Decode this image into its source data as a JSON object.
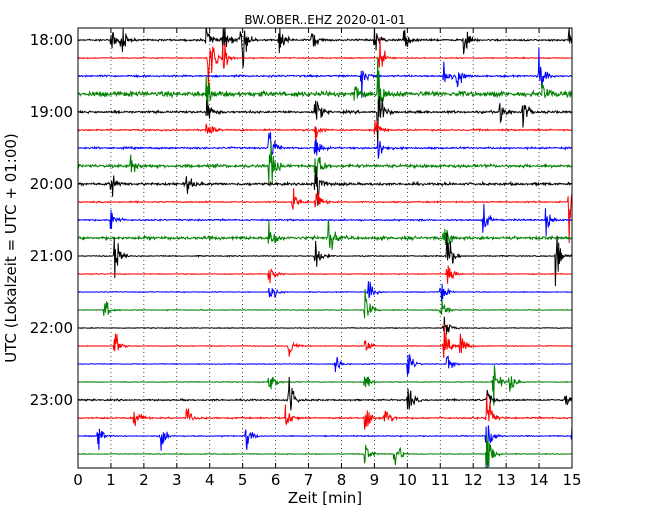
{
  "chart_data": {
    "type": "line",
    "title": "BW.OBER..EHZ 2020-01-01",
    "xlabel": "Zeit  [min]",
    "ylabel": "UTC (Lokalzeit = UTC + 01:00)",
    "xlim": [
      0,
      15
    ],
    "x_ticks": [
      "0",
      "1",
      "2",
      "3",
      "4",
      "5",
      "6",
      "7",
      "8",
      "9",
      "10",
      "11",
      "12",
      "13",
      "14",
      "15"
    ],
    "y_ticks": [
      "18:00",
      "19:00",
      "20:00",
      "21:00",
      "22:00",
      "23:00"
    ],
    "grid": "vertical dotted lines at every minute",
    "trace_colors": [
      "#000000",
      "#ff0000",
      "#0000ff",
      "#008000"
    ],
    "trace_start_times": [
      "18:00",
      "18:15",
      "18:30",
      "18:45",
      "19:00",
      "19:15",
      "19:30",
      "19:45",
      "20:00",
      "20:15",
      "20:30",
      "20:45",
      "21:00",
      "21:15",
      "21:30",
      "21:45",
      "22:00",
      "22:15",
      "22:30",
      "22:45",
      "23:00",
      "23:15",
      "23:30",
      "23:45"
    ],
    "trace_interval_minutes": 15,
    "noise_level": [
      0.35,
      0.2,
      0.35,
      1.0,
      0.45,
      0.3,
      0.35,
      0.6,
      0.5,
      0.25,
      0.3,
      0.6,
      0.2,
      0.15,
      0.15,
      0.15,
      0.15,
      0.15,
      0.15,
      0.15,
      0.3,
      0.3,
      0.2,
      0.15
    ],
    "events": [
      {
        "trace": "18:00",
        "minute": 1.0,
        "amp": 1.5
      },
      {
        "trace": "18:00",
        "minute": 1.3,
        "amp": 1.2
      },
      {
        "trace": "18:00",
        "minute": 3.9,
        "amp": 1.3
      },
      {
        "trace": "18:00",
        "minute": 4.4,
        "amp": 1.5
      },
      {
        "trace": "18:00",
        "minute": 4.9,
        "amp": 1.0
      },
      {
        "trace": "18:00",
        "minute": 5.0,
        "amp": 1.4
      },
      {
        "trace": "18:00",
        "minute": 6.1,
        "amp": 1.2
      },
      {
        "trace": "18:00",
        "minute": 7.1,
        "amp": 1.0
      },
      {
        "trace": "18:00",
        "minute": 9.0,
        "amp": 1.1
      },
      {
        "trace": "18:00",
        "minute": 9.9,
        "amp": 1.0
      },
      {
        "trace": "18:00",
        "minute": 11.7,
        "amp": 1.1
      },
      {
        "trace": "18:00",
        "minute": 14.9,
        "amp": 1.3
      },
      {
        "trace": "18:15",
        "minute": 3.95,
        "amp": 3.0
      },
      {
        "trace": "18:15",
        "minute": 4.4,
        "amp": 1.3
      },
      {
        "trace": "18:15",
        "minute": 9.15,
        "amp": 1.5
      },
      {
        "trace": "18:30",
        "minute": 8.6,
        "amp": 1.2
      },
      {
        "trace": "18:30",
        "minute": 11.1,
        "amp": 1.3
      },
      {
        "trace": "18:30",
        "minute": 11.5,
        "amp": 1.1
      },
      {
        "trace": "18:30",
        "minute": 14.0,
        "amp": 2.0
      },
      {
        "trace": "18:45",
        "minute": 3.9,
        "amp": 1.2
      },
      {
        "trace": "18:45",
        "minute": 8.4,
        "amp": 1.1
      },
      {
        "trace": "18:45",
        "minute": 9.1,
        "amp": 2.0
      },
      {
        "trace": "18:45",
        "minute": 14.1,
        "amp": 1.0
      },
      {
        "trace": "19:00",
        "minute": 3.9,
        "amp": 1.0
      },
      {
        "trace": "19:00",
        "minute": 7.2,
        "amp": 1.3
      },
      {
        "trace": "19:00",
        "minute": 9.1,
        "amp": 2.5
      },
      {
        "trace": "19:00",
        "minute": 12.8,
        "amp": 1.0
      },
      {
        "trace": "19:00",
        "minute": 13.5,
        "amp": 1.2
      },
      {
        "trace": "19:15",
        "minute": 3.9,
        "amp": 1.1
      },
      {
        "trace": "19:15",
        "minute": 7.2,
        "amp": 1.0
      },
      {
        "trace": "19:15",
        "minute": 9.0,
        "amp": 1.3
      },
      {
        "trace": "19:30",
        "minute": 5.8,
        "amp": 2.0
      },
      {
        "trace": "19:30",
        "minute": 7.2,
        "amp": 1.2
      },
      {
        "trace": "19:30",
        "minute": 9.1,
        "amp": 1.2
      },
      {
        "trace": "19:45",
        "minute": 1.6,
        "amp": 1.0
      },
      {
        "trace": "19:45",
        "minute": 5.8,
        "amp": 2.5
      },
      {
        "trace": "19:45",
        "minute": 7.2,
        "amp": 2.0
      },
      {
        "trace": "20:00",
        "minute": 1.0,
        "amp": 1.0
      },
      {
        "trace": "20:00",
        "minute": 3.3,
        "amp": 1.0
      },
      {
        "trace": "20:00",
        "minute": 7.2,
        "amp": 2.5
      },
      {
        "trace": "20:15",
        "minute": 6.5,
        "amp": 1.2
      },
      {
        "trace": "20:15",
        "minute": 7.2,
        "amp": 1.3
      },
      {
        "trace": "20:15",
        "minute": 14.9,
        "amp": 2.5
      },
      {
        "trace": "20:30",
        "minute": 1.0,
        "amp": 1.3
      },
      {
        "trace": "20:30",
        "minute": 12.3,
        "amp": 1.2
      },
      {
        "trace": "20:30",
        "minute": 14.2,
        "amp": 1.0
      },
      {
        "trace": "20:45",
        "minute": 5.8,
        "amp": 2.0
      },
      {
        "trace": "20:45",
        "minute": 7.6,
        "amp": 1.8
      },
      {
        "trace": "20:45",
        "minute": 11.1,
        "amp": 1.2
      },
      {
        "trace": "21:00",
        "minute": 1.1,
        "amp": 2.5
      },
      {
        "trace": "21:00",
        "minute": 7.2,
        "amp": 1.5
      },
      {
        "trace": "21:00",
        "minute": 11.2,
        "amp": 2.5
      },
      {
        "trace": "21:00",
        "minute": 14.5,
        "amp": 2.5
      },
      {
        "trace": "21:15",
        "minute": 5.8,
        "amp": 1.2
      },
      {
        "trace": "21:15",
        "minute": 11.2,
        "amp": 1.5
      },
      {
        "trace": "21:30",
        "minute": 5.8,
        "amp": 1.5
      },
      {
        "trace": "21:30",
        "minute": 8.8,
        "amp": 1.2
      },
      {
        "trace": "21:30",
        "minute": 11.0,
        "amp": 1.2
      },
      {
        "trace": "21:45",
        "minute": 0.8,
        "amp": 1.0
      },
      {
        "trace": "21:45",
        "minute": 8.7,
        "amp": 2.0
      },
      {
        "trace": "21:45",
        "minute": 11.0,
        "amp": 1.5
      },
      {
        "trace": "22:00",
        "minute": 11.1,
        "amp": 1.3
      },
      {
        "trace": "22:15",
        "minute": 1.1,
        "amp": 1.2
      },
      {
        "trace": "22:15",
        "minute": 6.4,
        "amp": 1.0
      },
      {
        "trace": "22:15",
        "minute": 8.7,
        "amp": 1.0
      },
      {
        "trace": "22:15",
        "minute": 11.1,
        "amp": 1.5
      },
      {
        "trace": "22:15",
        "minute": 11.6,
        "amp": 1.3
      },
      {
        "trace": "22:30",
        "minute": 7.8,
        "amp": 1.0
      },
      {
        "trace": "22:30",
        "minute": 10.0,
        "amp": 1.5
      },
      {
        "trace": "22:30",
        "minute": 11.2,
        "amp": 1.0
      },
      {
        "trace": "22:45",
        "minute": 5.8,
        "amp": 1.5
      },
      {
        "trace": "22:45",
        "minute": 8.7,
        "amp": 1.0
      },
      {
        "trace": "22:45",
        "minute": 12.6,
        "amp": 2.0
      },
      {
        "trace": "22:45",
        "minute": 13.1,
        "amp": 1.0
      },
      {
        "trace": "23:00",
        "minute": 6.4,
        "amp": 1.8
      },
      {
        "trace": "23:00",
        "minute": 10.0,
        "amp": 1.2
      },
      {
        "trace": "23:00",
        "minute": 12.4,
        "amp": 1.0
      },
      {
        "trace": "23:00",
        "minute": 14.8,
        "amp": 1.0
      },
      {
        "trace": "23:15",
        "minute": 1.7,
        "amp": 1.2
      },
      {
        "trace": "23:15",
        "minute": 3.3,
        "amp": 1.0
      },
      {
        "trace": "23:15",
        "minute": 6.3,
        "amp": 1.3
      },
      {
        "trace": "23:15",
        "minute": 8.7,
        "amp": 1.5
      },
      {
        "trace": "23:15",
        "minute": 9.3,
        "amp": 1.3
      },
      {
        "trace": "23:15",
        "minute": 12.4,
        "amp": 2.0
      },
      {
        "trace": "23:30",
        "minute": 0.6,
        "amp": 1.0
      },
      {
        "trace": "23:30",
        "minute": 2.5,
        "amp": 1.0
      },
      {
        "trace": "23:30",
        "minute": 5.1,
        "amp": 1.3
      },
      {
        "trace": "23:30",
        "minute": 12.4,
        "amp": 2.5
      },
      {
        "trace": "23:30",
        "minute": 15.0,
        "amp": 1.5
      },
      {
        "trace": "23:45",
        "minute": 8.7,
        "amp": 1.0
      },
      {
        "trace": "23:45",
        "minute": 9.6,
        "amp": 2.0
      },
      {
        "trace": "23:45",
        "minute": 12.4,
        "amp": 2.5
      }
    ]
  }
}
